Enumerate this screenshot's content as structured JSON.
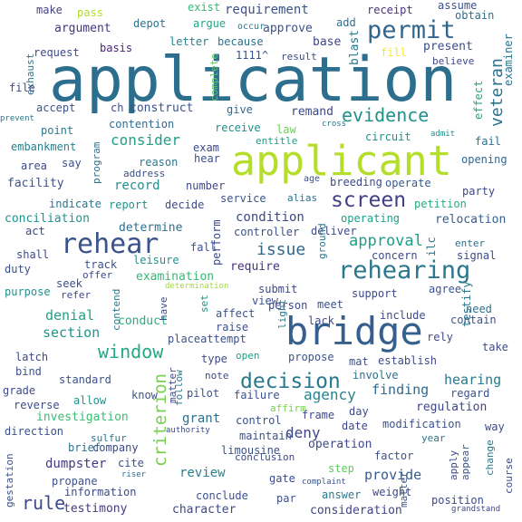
{
  "word_cloud": {
    "words": [
      {
        "text": "application",
        "color": "#2c6e8e"
      },
      {
        "text": "applicant",
        "color": "#b5de2b"
      },
      {
        "text": "bridge",
        "color": "#35608d"
      },
      {
        "text": "rehearing",
        "color": "#2a788e"
      },
      {
        "text": "rehear",
        "color": "#3b528b"
      },
      {
        "text": "permit",
        "color": "#31668e"
      },
      {
        "text": "decision",
        "color": "#2a788e"
      },
      {
        "text": "window",
        "color": "#22a884"
      },
      {
        "text": "screen",
        "color": "#433e85"
      },
      {
        "text": "evidence",
        "color": "#21918c"
      },
      {
        "text": "criterion",
        "color": "#7ad151"
      },
      {
        "text": "approval",
        "color": "#1f9e89"
      },
      {
        "text": "veteran",
        "color": "#2c728e"
      },
      {
        "text": "issue",
        "color": "#31688e"
      },
      {
        "text": "rule",
        "color": "#3e4a89"
      },
      {
        "text": "consider",
        "color": "#1f9f88"
      },
      {
        "text": "deny",
        "color": "#404588"
      },
      {
        "text": "agency",
        "color": "#25848e"
      },
      {
        "text": "requirement",
        "color": "#3b528b"
      },
      {
        "text": "record",
        "color": "#218f8d"
      },
      {
        "text": "review",
        "color": "#26828e"
      },
      {
        "text": "condition",
        "color": "#3e4989"
      },
      {
        "text": "hearing",
        "color": "#29798e"
      },
      {
        "text": "denial",
        "color": "#1fa187"
      },
      {
        "text": "finding",
        "color": "#306a8e"
      },
      {
        "text": "provide",
        "color": "#365c8d"
      },
      {
        "text": "regulation",
        "color": "#3f4788"
      },
      {
        "text": "grant",
        "color": "#2d708e"
      },
      {
        "text": "require",
        "color": "#46327e"
      },
      {
        "text": "section",
        "color": "#1f958b"
      },
      {
        "text": "conduct",
        "color": "#26ad81"
      },
      {
        "text": "examination",
        "color": "#37b878"
      },
      {
        "text": "investigation",
        "color": "#3dbc74"
      },
      {
        "text": "operation",
        "color": "#3f4889"
      },
      {
        "text": "consideration",
        "color": "#404688"
      },
      {
        "text": "dumpster",
        "color": "#443a83"
      },
      {
        "text": "examiner",
        "color": "#2a768e"
      },
      {
        "text": "testimony",
        "color": "#433d84"
      },
      {
        "text": "character",
        "color": "#3f4889"
      },
      {
        "text": "construct",
        "color": "#3a538b"
      },
      {
        "text": "contention",
        "color": "#2f6c8e"
      },
      {
        "text": "indicate",
        "color": "#2b758e"
      },
      {
        "text": "facility",
        "color": "#3b528b"
      },
      {
        "text": "conciliation",
        "color": "#20928c"
      },
      {
        "text": "embankment",
        "color": "#27808e"
      },
      {
        "text": "determine",
        "color": "#2d708e"
      },
      {
        "text": "relocation",
        "color": "#365d8d"
      },
      {
        "text": "operating",
        "color": "#1fa088"
      },
      {
        "text": "operate",
        "color": "#375b8d"
      },
      {
        "text": "breeding",
        "color": "#3f4788"
      },
      {
        "text": "petition",
        "color": "#25ab82"
      },
      {
        "text": "opening",
        "color": "#31668e"
      },
      {
        "text": "present",
        "color": "#3d4e8a"
      },
      {
        "text": "argument",
        "color": "#453581"
      },
      {
        "text": "request",
        "color": "#3e4c8a"
      },
      {
        "text": "receipt",
        "color": "#46337f"
      },
      {
        "text": "approve",
        "color": "#3b528b"
      },
      {
        "text": "because",
        "color": "#2c738e"
      },
      {
        "text": "letter",
        "color": "#26828e"
      },
      {
        "text": "basis",
        "color": "#482677"
      },
      {
        "text": "depot",
        "color": "#2b748e"
      },
      {
        "text": "argue",
        "color": "#22a785"
      },
      {
        "text": "exist",
        "color": "#37b878"
      },
      {
        "text": "pass",
        "color": "#b2dd2d"
      },
      {
        "text": "make",
        "color": "#424186"
      },
      {
        "text": "assume",
        "color": "#3b528b"
      },
      {
        "text": "obtain",
        "color": "#2d718e"
      },
      {
        "text": "base",
        "color": "#404588"
      },
      {
        "text": "blast",
        "color": "#2b758e"
      },
      {
        "text": "add",
        "color": "#2d708e"
      },
      {
        "text": "result",
        "color": "#3e4a89"
      },
      {
        "text": "1111^",
        "color": "#3b528b"
      },
      {
        "text": "occur",
        "color": "#2a788e"
      },
      {
        "text": "complete",
        "color": "#5ec962"
      },
      {
        "text": "exhaust",
        "color": "#2b758e"
      },
      {
        "text": "file",
        "color": "#3e4a89"
      },
      {
        "text": "prevent",
        "color": "#2a788e"
      },
      {
        "text": "accept",
        "color": "#3b528b"
      },
      {
        "text": "ch",
        "color": "#3d4e8a"
      },
      {
        "text": "give",
        "color": "#31678e"
      },
      {
        "text": "remand",
        "color": "#3e4989"
      },
      {
        "text": "believe",
        "color": "#3f4788"
      },
      {
        "text": "fill",
        "color": "#fde725"
      },
      {
        "text": "law",
        "color": "#6ece58"
      },
      {
        "text": "receive",
        "color": "#21918c"
      },
      {
        "text": "entitle",
        "color": "#1f9e89"
      },
      {
        "text": "cross",
        "color": "#2a788e"
      },
      {
        "text": "admit",
        "color": "#21918c"
      },
      {
        "text": "effect",
        "color": "#22a884"
      },
      {
        "text": "point",
        "color": "#2a788e"
      },
      {
        "text": "exam",
        "color": "#3e4a89"
      },
      {
        "text": "circuit",
        "color": "#20928c"
      },
      {
        "text": "fail",
        "color": "#2c718e"
      },
      {
        "text": "hear",
        "color": "#3b528b"
      },
      {
        "text": "say",
        "color": "#3b528b"
      },
      {
        "text": "area",
        "color": "#3e4a89"
      },
      {
        "text": "reason",
        "color": "#2a788e"
      },
      {
        "text": "address",
        "color": "#3b528b"
      },
      {
        "text": "program",
        "color": "#2c718e"
      },
      {
        "text": "age",
        "color": "#3b528b"
      },
      {
        "text": "number",
        "color": "#3e4a89"
      },
      {
        "text": "decide",
        "color": "#3e4a89"
      },
      {
        "text": "report",
        "color": "#20928c"
      },
      {
        "text": "service",
        "color": "#3b528b"
      },
      {
        "text": "alias",
        "color": "#2c718e"
      },
      {
        "text": "party",
        "color": "#3e4a89"
      },
      {
        "text": "act",
        "color": "#3e4a89"
      },
      {
        "text": "controller",
        "color": "#3b528b"
      },
      {
        "text": "deliver",
        "color": "#3e4a89"
      },
      {
        "text": "shall",
        "color": "#3e4a89"
      },
      {
        "text": "track",
        "color": "#3b528b"
      },
      {
        "text": "fall",
        "color": "#3b528b"
      },
      {
        "text": "perform",
        "color": "#3e4a89"
      },
      {
        "text": "ground",
        "color": "#2a788e"
      },
      {
        "text": "enter",
        "color": "#2c718e"
      },
      {
        "text": "signal",
        "color": "#3e4a89"
      },
      {
        "text": "ilc",
        "color": "#2a788e"
      },
      {
        "text": "concern",
        "color": "#3e4a89"
      },
      {
        "text": "duty",
        "color": "#3b528b"
      },
      {
        "text": "offer",
        "color": "#3e4a89"
      },
      {
        "text": "leisure",
        "color": "#20928c"
      },
      {
        "text": "seek",
        "color": "#3b528b"
      },
      {
        "text": "submit",
        "color": "#3e4a89"
      },
      {
        "text": "purpose",
        "color": "#20928c"
      },
      {
        "text": "refer",
        "color": "#3e4a89"
      },
      {
        "text": "determination",
        "color": "#a0da39"
      },
      {
        "text": "agree",
        "color": "#3b528b"
      },
      {
        "text": "support",
        "color": "#3e4a89"
      },
      {
        "text": "contend",
        "color": "#2a788e"
      },
      {
        "text": "view",
        "color": "#3b528b"
      },
      {
        "text": "person",
        "color": "#3e4a89"
      },
      {
        "text": "meet",
        "color": "#3b528b"
      },
      {
        "text": "need",
        "color": "#2c718e"
      },
      {
        "text": "have",
        "color": "#3e4a89"
      },
      {
        "text": "set",
        "color": "#20928c"
      },
      {
        "text": "light",
        "color": "#2a788e"
      },
      {
        "text": "affect",
        "color": "#3b528b"
      },
      {
        "text": "include",
        "color": "#3e4a89"
      },
      {
        "text": "contain",
        "color": "#3b528b"
      },
      {
        "text": "lack",
        "color": "#3e4a89"
      },
      {
        "text": "testify",
        "color": "#2a788e"
      },
      {
        "text": "raise",
        "color": "#3b528b"
      },
      {
        "text": "rely",
        "color": "#3e4a89"
      },
      {
        "text": "placeattempt",
        "color": "#3b528b"
      },
      {
        "text": "take",
        "color": "#3e4a89"
      },
      {
        "text": "latch",
        "color": "#3e4a89"
      },
      {
        "text": "propose",
        "color": "#3b528b"
      },
      {
        "text": "type",
        "color": "#3e4a89"
      },
      {
        "text": "mat",
        "color": "#3b528b"
      },
      {
        "text": "establish",
        "color": "#3e4a89"
      },
      {
        "text": "bind",
        "color": "#3b528b"
      },
      {
        "text": "open",
        "color": "#1fa187"
      },
      {
        "text": "note",
        "color": "#3e4a89"
      },
      {
        "text": "involve",
        "color": "#2c718e"
      },
      {
        "text": "standard",
        "color": "#3b528b"
      },
      {
        "text": "grade",
        "color": "#3e4a89"
      },
      {
        "text": "pilot",
        "color": "#3b528b"
      },
      {
        "text": "reverse",
        "color": "#3e4a89"
      },
      {
        "text": "allow",
        "color": "#20928c"
      },
      {
        "text": "know",
        "color": "#3b528b"
      },
      {
        "text": "matter",
        "color": "#3e4a89"
      },
      {
        "text": "follow",
        "color": "#2a788e"
      },
      {
        "text": "failure",
        "color": "#3b528b"
      },
      {
        "text": "affirm",
        "color": "#7ad151"
      },
      {
        "text": "regard",
        "color": "#3b528b"
      },
      {
        "text": "day",
        "color": "#3e4a89"
      },
      {
        "text": "control",
        "color": "#3b528b"
      },
      {
        "text": "frame",
        "color": "#3e4a89"
      },
      {
        "text": "direction",
        "color": "#3b528b"
      },
      {
        "text": "sulfur",
        "color": "#2a788e"
      },
      {
        "text": "authority",
        "color": "#3e4a89"
      },
      {
        "text": "maintain",
        "color": "#3b528b"
      },
      {
        "text": "date",
        "color": "#3e4a89"
      },
      {
        "text": "modification",
        "color": "#3b528b"
      },
      {
        "text": "way",
        "color": "#3e4a89"
      },
      {
        "text": "brief",
        "color": "#2c718e"
      },
      {
        "text": "limousine",
        "color": "#3b528b"
      },
      {
        "text": "year",
        "color": "#2a788e"
      },
      {
        "text": "company",
        "color": "#3e4a89"
      },
      {
        "text": "cite",
        "color": "#3b528b"
      },
      {
        "text": "conclusion",
        "color": "#3e4a89"
      },
      {
        "text": "factor",
        "color": "#3b528b"
      },
      {
        "text": "step",
        "color": "#5ec962"
      },
      {
        "text": "apply",
        "color": "#3e4a89"
      },
      {
        "text": "appear",
        "color": "#3b528b"
      },
      {
        "text": "change",
        "color": "#2a788e"
      },
      {
        "text": "course",
        "color": "#3e4a89"
      },
      {
        "text": "propane",
        "color": "#3b528b"
      },
      {
        "text": "riser",
        "color": "#2c718e"
      },
      {
        "text": "complaint",
        "color": "#3b528b"
      },
      {
        "text": "gate",
        "color": "#3e4a89"
      },
      {
        "text": "conclude",
        "color": "#3b528b"
      },
      {
        "text": "answer",
        "color": "#2a788e"
      },
      {
        "text": "weight",
        "color": "#3e4a89"
      },
      {
        "text": "gestation",
        "color": "#3b528b"
      },
      {
        "text": "information",
        "color": "#3e4a89"
      },
      {
        "text": "par",
        "color": "#3b528b"
      },
      {
        "text": "position",
        "color": "#3e4a89"
      },
      {
        "text": "matter",
        "color": "#3b528b"
      },
      {
        "text": "grandstand",
        "color": "#3e4a89"
      }
    ]
  }
}
